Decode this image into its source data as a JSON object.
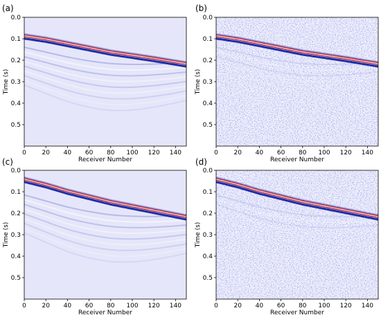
{
  "chart_data": [
    {
      "type": "heatmap",
      "panel_label": "(a)",
      "xlabel": "Receiver Number",
      "ylabel": "Time (s)",
      "x_ticks": [
        0,
        20,
        40,
        60,
        80,
        100,
        120,
        140
      ],
      "y_ticks": [
        0.0,
        0.1,
        0.2,
        0.3,
        0.4,
        0.5
      ],
      "xlim": [
        0,
        150
      ],
      "ylim": [
        0.6,
        0.0
      ],
      "first_arrival_time_s": {
        "receivers": [
          0,
          20,
          40,
          60,
          80,
          100,
          120,
          150
        ],
        "times": [
          0.09,
          0.105,
          0.125,
          0.145,
          0.165,
          0.18,
          0.195,
          0.22
        ]
      },
      "noise": false,
      "multiples": "strong"
    },
    {
      "type": "heatmap",
      "panel_label": "(b)",
      "xlabel": "Receiver Number",
      "ylabel": "Time (s)",
      "x_ticks": [
        0,
        20,
        40,
        60,
        80,
        100,
        120,
        140
      ],
      "y_ticks": [
        0.0,
        0.1,
        0.2,
        0.3,
        0.4,
        0.5
      ],
      "xlim": [
        0,
        150
      ],
      "ylim": [
        0.6,
        0.0
      ],
      "first_arrival_time_s": {
        "receivers": [
          0,
          20,
          40,
          60,
          80,
          100,
          120,
          150
        ],
        "times": [
          0.09,
          0.105,
          0.125,
          0.145,
          0.165,
          0.18,
          0.195,
          0.22
        ]
      },
      "noise": true,
      "multiples": "weak"
    },
    {
      "type": "heatmap",
      "panel_label": "(c)",
      "xlabel": "Receiver Number",
      "ylabel": "Time (s)",
      "x_ticks": [
        0,
        20,
        40,
        60,
        80,
        100,
        120,
        140
      ],
      "y_ticks": [
        0.0,
        0.1,
        0.2,
        0.3,
        0.4,
        0.5
      ],
      "xlim": [
        0,
        150
      ],
      "ylim": [
        0.6,
        0.0
      ],
      "first_arrival_time_s": {
        "receivers": [
          0,
          20,
          40,
          60,
          80,
          100,
          120,
          150
        ],
        "times": [
          0.045,
          0.07,
          0.1,
          0.125,
          0.15,
          0.17,
          0.19,
          0.22
        ]
      },
      "noise": false,
      "multiples": "strong"
    },
    {
      "type": "heatmap",
      "panel_label": "(d)",
      "xlabel": "Receiver Number",
      "ylabel": "Time (s)",
      "x_ticks": [
        0,
        20,
        40,
        60,
        80,
        100,
        120,
        140
      ],
      "y_ticks": [
        0.0,
        0.1,
        0.2,
        0.3,
        0.4,
        0.5
      ],
      "xlim": [
        0,
        150
      ],
      "ylim": [
        0.6,
        0.0
      ],
      "first_arrival_time_s": {
        "receivers": [
          0,
          20,
          40,
          60,
          80,
          100,
          120,
          150
        ],
        "times": [
          0.045,
          0.07,
          0.1,
          0.125,
          0.15,
          0.17,
          0.19,
          0.22
        ]
      },
      "noise": true,
      "multiples": "weak"
    }
  ],
  "colors": {
    "background_field": "#e6e6fa",
    "positive": "#b2182b",
    "negative": "#2130a8",
    "peak_highlight": "#fff3f0"
  }
}
